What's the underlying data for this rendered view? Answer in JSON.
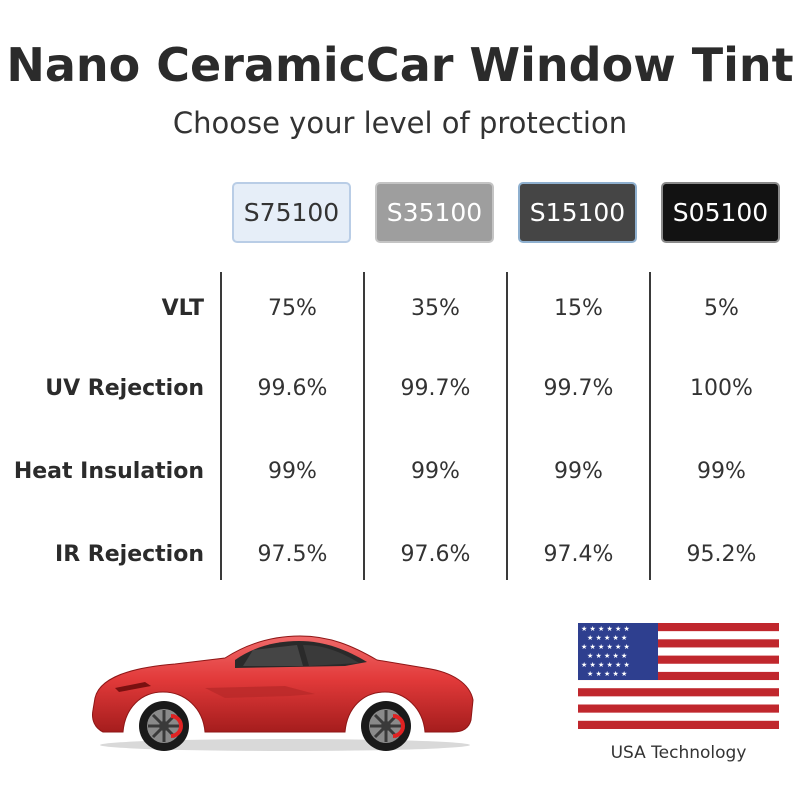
{
  "title": "Nano CeramicCar Window Tint",
  "subtitle": "Choose your level of protection",
  "products": [
    "S75100",
    "S35100",
    "S15100",
    "S05100"
  ],
  "rows": [
    {
      "label": "VLT",
      "values": [
        "75%",
        "35%",
        "15%",
        "5%"
      ]
    },
    {
      "label": "UV Rejection",
      "values": [
        "99.6%",
        "99.7%",
        "99.7%",
        "100%"
      ]
    },
    {
      "label": "Heat Insulation",
      "values": [
        "99%",
        "99%",
        "99%",
        "99%"
      ]
    },
    {
      "label": "IR Rejection",
      "values": [
        "97.5%",
        "97.6%",
        "97.4%",
        "95.2%"
      ]
    }
  ],
  "flag_caption": "USA Technology",
  "colors": {
    "car_body": "#e23a3a",
    "flag_red": "#c0272d",
    "flag_blue": "#2e3f8f"
  }
}
